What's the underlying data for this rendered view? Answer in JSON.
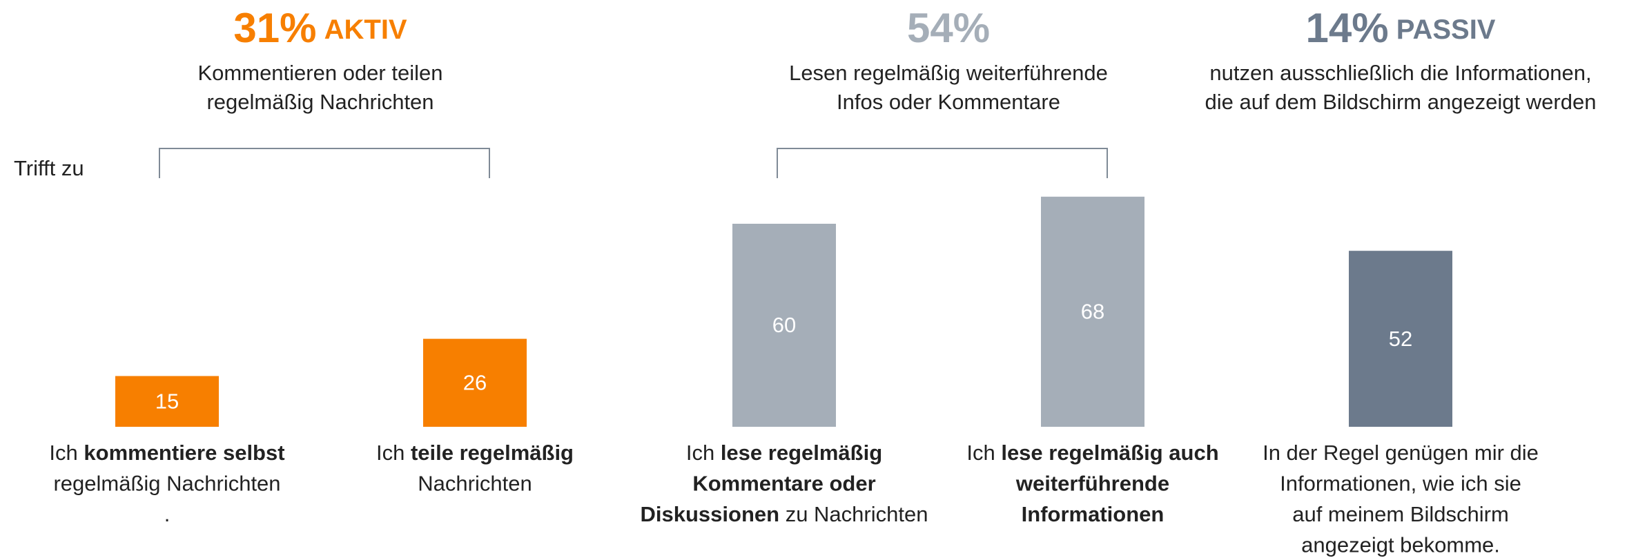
{
  "chart_data": {
    "type": "bar",
    "ylim": [
      0,
      100
    ],
    "y_label": "Trifft zu",
    "groups": [
      {
        "value": 31,
        "value_label": "31%",
        "label": "AKTIV",
        "color": "#f77f00",
        "description": [
          "Kommentieren oder teilen",
          "regelmäßig Nachrichten"
        ]
      },
      {
        "value": 54,
        "value_label": "54%",
        "label": "",
        "color": "#a5aeb8",
        "description": [
          "Lesen regelmäßig weiterführende",
          "Infos oder Kommentare"
        ]
      },
      {
        "value": 14,
        "value_label": "14%",
        "label": "PASSIV",
        "color": "#6c7a8c",
        "description": [
          "nutzen ausschließlich die Informationen,",
          "die auf dem Bildschirm angezeigt werden"
        ]
      }
    ],
    "categories": [
      [
        [
          {
            "text": "Ich "
          },
          {
            "text": "kommentiere selbst",
            "bold": true
          }
        ],
        [
          {
            "text": "regelmäßig Nachrichten"
          }
        ],
        [
          {
            "text": "."
          }
        ]
      ],
      [
        [
          {
            "text": "Ich "
          },
          {
            "text": "teile regelmäßig",
            "bold": true
          }
        ],
        [
          {
            "text": "Nachrichten"
          }
        ]
      ],
      [
        [
          {
            "text": "Ich "
          },
          {
            "text": "lese regelmäßig",
            "bold": true
          }
        ],
        [
          {
            "text": "Kommentare oder",
            "bold": true
          }
        ],
        [
          {
            "text": "Diskussionen",
            "bold": true
          },
          {
            "text": " zu Nachrichten"
          }
        ]
      ],
      [
        [
          {
            "text": "Ich "
          },
          {
            "text": "lese regelmäßig auch",
            "bold": true
          }
        ],
        [
          {
            "text": "weiterführende",
            "bold": true
          }
        ],
        [
          {
            "text": "Informationen",
            "bold": true
          }
        ]
      ],
      [
        [
          {
            "text": "In der Regel genügen mir die"
          }
        ],
        [
          {
            "text": "Informationen, wie ich sie"
          }
        ],
        [
          {
            "text": "auf meinem Bildschirm"
          }
        ],
        [
          {
            "text": "angezeigt bekomme."
          }
        ]
      ]
    ],
    "values": [
      15,
      26,
      60,
      68,
      52
    ],
    "colors": [
      "#f77f00",
      "#f77f00",
      "#a5aeb8",
      "#a5aeb8",
      "#6c7a8c"
    ]
  }
}
